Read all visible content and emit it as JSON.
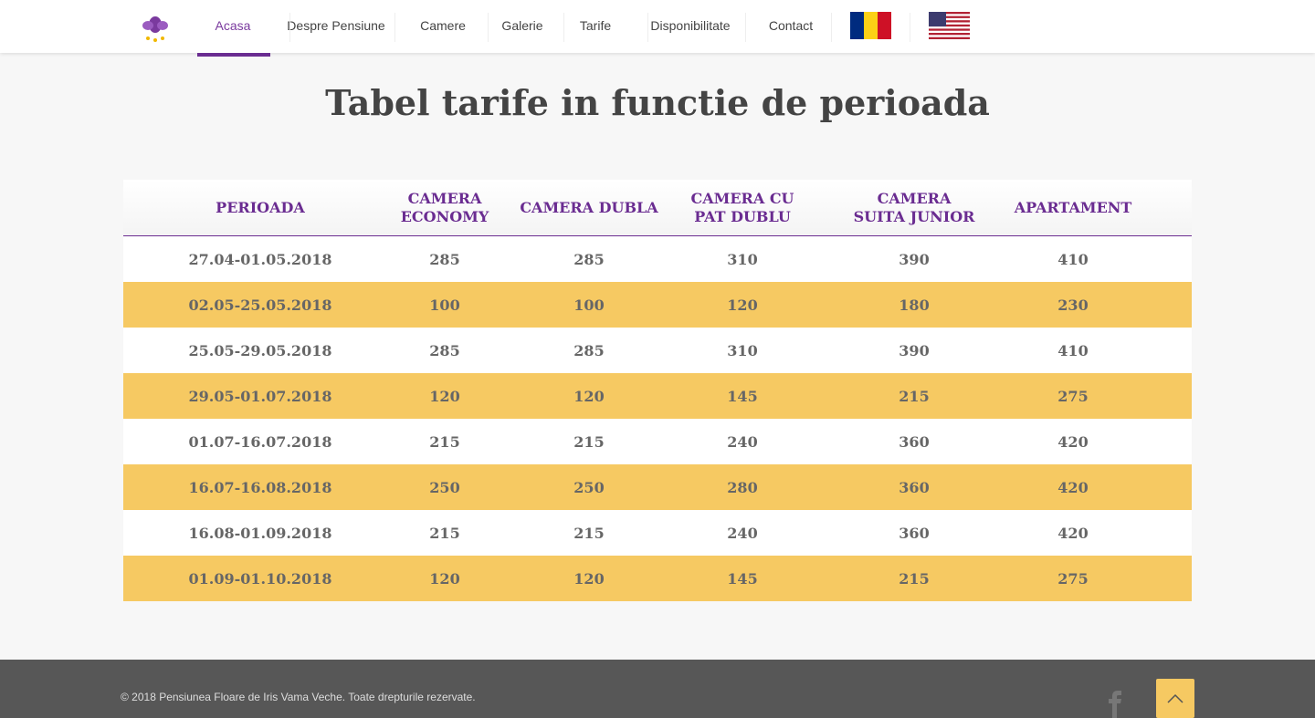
{
  "nav": {
    "items": [
      "Acasa",
      "Despre Pensiune",
      "Camere",
      "Galerie",
      "Tarife",
      "Disponibilitate",
      "Contact"
    ]
  },
  "header": {
    "title": "Tabel tarife in functie de perioada"
  },
  "table": {
    "columns": [
      "PERIOADA",
      "CAMERA ECONOMY",
      "CAMERA DUBLA",
      "CAMERA CU PAT DUBLU",
      "CAMERA SUITA JUNIOR",
      "APARTAMENT"
    ],
    "rows": [
      [
        "27.04-01.05.2018",
        285,
        285,
        310,
        390,
        410
      ],
      [
        "02.05-25.05.2018",
        100,
        100,
        120,
        180,
        230
      ],
      [
        "25.05-29.05.2018",
        285,
        285,
        310,
        390,
        410
      ],
      [
        "29.05-01.07.2018",
        120,
        120,
        145,
        215,
        275
      ],
      [
        "01.07-16.07.2018",
        215,
        215,
        240,
        360,
        420
      ],
      [
        "16.07-16.08.2018",
        250,
        250,
        280,
        360,
        420
      ],
      [
        "16.08-01.09.2018",
        215,
        215,
        240,
        360,
        420
      ],
      [
        "01.09-01.10.2018",
        120,
        120,
        145,
        215,
        275
      ]
    ]
  },
  "footer": {
    "copyright": "© 2018 Pensiunea Floare de Iris Vama Veche. Toate drepturile rezervate."
  }
}
